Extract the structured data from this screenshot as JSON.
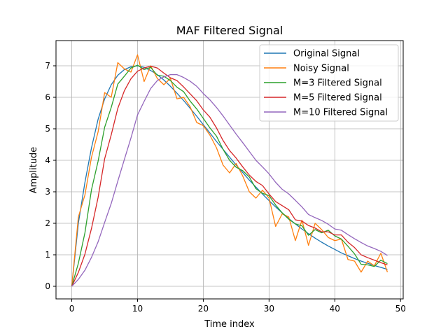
{
  "chart_data": {
    "type": "line",
    "title": "MAF Filtered Signal",
    "xlabel": "Time index",
    "ylabel": "Amplitude",
    "xlim": [
      -2.4,
      50.4
    ],
    "ylim": [
      -0.4,
      7.8
    ],
    "xticks": [
      0,
      10,
      20,
      30,
      40,
      50
    ],
    "yticks": [
      0,
      1,
      2,
      3,
      4,
      5,
      6,
      7
    ],
    "grid": true,
    "legend_position": "upper right",
    "series": [
      {
        "name": "Original Signal",
        "color": "#1f77b4",
        "x": [
          0,
          1,
          2,
          3,
          4,
          5,
          6,
          7,
          8,
          9,
          10,
          11,
          12,
          13,
          14,
          15,
          16,
          17,
          18,
          19,
          20,
          21,
          22,
          23,
          24,
          25,
          26,
          27,
          28,
          29,
          30,
          31,
          32,
          33,
          34,
          35,
          36,
          37,
          38,
          39,
          40,
          41,
          42,
          43,
          44,
          45,
          46,
          47,
          48
        ],
        "values": [
          0,
          2.0,
          3.3,
          4.4,
          5.3,
          5.95,
          6.4,
          6.7,
          6.88,
          6.97,
          7.0,
          6.95,
          6.85,
          6.72,
          6.55,
          6.35,
          6.13,
          5.9,
          5.65,
          5.4,
          5.13,
          4.87,
          4.6,
          4.35,
          4.1,
          3.85,
          3.61,
          3.37,
          3.15,
          2.93,
          2.72,
          2.52,
          2.33,
          2.15,
          1.98,
          1.82,
          1.67,
          1.53,
          1.4,
          1.28,
          1.17,
          1.06,
          0.97,
          0.88,
          0.8,
          0.73,
          0.66,
          0.6,
          0.54
        ]
      },
      {
        "name": "Noisy Signal",
        "color": "#ff7f0e",
        "x": [
          0,
          1,
          2,
          3,
          4,
          5,
          6,
          7,
          8,
          9,
          10,
          11,
          12,
          13,
          14,
          15,
          16,
          17,
          18,
          19,
          20,
          21,
          22,
          23,
          24,
          25,
          26,
          27,
          28,
          29,
          30,
          31,
          32,
          33,
          34,
          35,
          36,
          37,
          38,
          39,
          40,
          41,
          42,
          43,
          44,
          45,
          46,
          47,
          48
        ],
        "values": [
          0,
          2.2,
          2.9,
          4.1,
          4.9,
          6.15,
          6.0,
          7.1,
          6.9,
          6.8,
          7.35,
          6.5,
          7.0,
          6.6,
          6.4,
          6.6,
          5.95,
          6.0,
          5.7,
          5.2,
          5.1,
          4.8,
          4.4,
          3.85,
          3.6,
          3.9,
          3.5,
          3.0,
          2.8,
          3.05,
          2.8,
          1.9,
          2.3,
          2.2,
          1.45,
          2.1,
          1.3,
          2.0,
          1.8,
          1.55,
          1.45,
          1.5,
          0.85,
          0.8,
          0.45,
          0.8,
          0.65,
          1.05,
          0.45
        ]
      },
      {
        "name": "M=3 Filtered Signal",
        "color": "#2ca02c",
        "x": [
          0,
          1,
          2,
          3,
          4,
          5,
          6,
          7,
          8,
          9,
          10,
          11,
          12,
          13,
          14,
          15,
          16,
          17,
          18,
          19,
          20,
          21,
          22,
          23,
          24,
          25,
          26,
          27,
          28,
          29,
          30,
          31,
          32,
          33,
          34,
          35,
          36,
          37,
          38,
          39,
          40,
          41,
          42,
          43,
          44,
          45,
          46,
          47,
          48
        ],
        "values": [
          0,
          0.73,
          1.7,
          3.07,
          3.97,
          5.05,
          5.68,
          6.42,
          6.67,
          6.93,
          7.02,
          6.88,
          6.95,
          6.7,
          6.67,
          6.53,
          6.32,
          6.18,
          5.88,
          5.63,
          5.33,
          5.03,
          4.77,
          4.35,
          4.0,
          3.78,
          3.67,
          3.47,
          3.1,
          2.95,
          2.88,
          2.58,
          2.33,
          2.13,
          1.98,
          1.92,
          1.62,
          1.8,
          1.7,
          1.78,
          1.6,
          1.5,
          1.27,
          1.03,
          0.7,
          0.68,
          0.63,
          0.83,
          0.72
        ]
      },
      {
        "name": "M=5 Filtered Signal",
        "color": "#d62728",
        "x": [
          0,
          1,
          2,
          3,
          4,
          5,
          6,
          7,
          8,
          9,
          10,
          11,
          12,
          13,
          14,
          15,
          16,
          17,
          18,
          19,
          20,
          21,
          22,
          23,
          24,
          25,
          26,
          27,
          28,
          29,
          30,
          31,
          32,
          33,
          34,
          35,
          36,
          37,
          38,
          39,
          40,
          41,
          42,
          43,
          44,
          45,
          46,
          47,
          48
        ],
        "values": [
          0,
          0.44,
          1.02,
          1.84,
          2.82,
          4.05,
          4.81,
          5.65,
          6.21,
          6.59,
          6.83,
          6.93,
          6.99,
          6.93,
          6.77,
          6.62,
          6.53,
          6.33,
          6.11,
          5.89,
          5.6,
          5.37,
          5.03,
          4.63,
          4.31,
          4.07,
          3.79,
          3.53,
          3.33,
          3.2,
          2.93,
          2.69,
          2.56,
          2.43,
          2.11,
          2.07,
          1.93,
          1.85,
          1.73,
          1.73,
          1.63,
          1.63,
          1.4,
          1.23,
          1.0,
          0.91,
          0.83,
          0.75,
          0.68
        ]
      },
      {
        "name": "M=10 Filtered Signal",
        "color": "#9467bd",
        "x": [
          0,
          1,
          2,
          3,
          4,
          5,
          6,
          7,
          8,
          9,
          10,
          11,
          12,
          13,
          14,
          15,
          16,
          17,
          18,
          19,
          20,
          21,
          22,
          23,
          24,
          25,
          26,
          27,
          28,
          29,
          30,
          31,
          32,
          33,
          34,
          35,
          36,
          37,
          38,
          39,
          40,
          41,
          42,
          43,
          44,
          45,
          46,
          47,
          48
        ],
        "values": [
          0,
          0.22,
          0.51,
          0.92,
          1.41,
          2.03,
          2.63,
          3.34,
          4.03,
          4.71,
          5.44,
          5.87,
          6.28,
          6.53,
          6.65,
          6.72,
          6.72,
          6.63,
          6.51,
          6.35,
          6.12,
          5.92,
          5.68,
          5.41,
          5.12,
          4.83,
          4.56,
          4.28,
          4.0,
          3.79,
          3.57,
          3.3,
          3.08,
          2.93,
          2.73,
          2.52,
          2.28,
          2.18,
          2.09,
          1.97,
          1.82,
          1.78,
          1.64,
          1.51,
          1.39,
          1.28,
          1.2,
          1.11,
          0.98
        ]
      }
    ]
  }
}
